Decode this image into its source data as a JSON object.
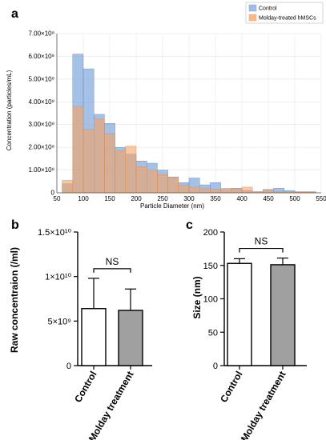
{
  "chart_data": [
    {
      "panel": "a",
      "type": "bar",
      "xlabel": "Particle Diameter (nm)",
      "ylabel": "Concentration (particles/mL)",
      "xlim": [
        50,
        550
      ],
      "ylim": [
        0,
        700000000
      ],
      "x_ticks": [
        "50",
        "100",
        "150",
        "200",
        "250",
        "300",
        "350",
        "400",
        "450",
        "500",
        "550"
      ],
      "y_ticks": [
        "0",
        "1.00×10⁸",
        "2.00×10⁸",
        "3.00×10⁸",
        "4.00×10⁸",
        "5.00×10⁸",
        "6.00×10⁸",
        "7.00×10⁸"
      ],
      "bin_width": 20,
      "bin_start": [
        60,
        80,
        100,
        120,
        140,
        160,
        180,
        200,
        220,
        240,
        260,
        280,
        300,
        320,
        340,
        360,
        380,
        400,
        420,
        440,
        460,
        480,
        500,
        520
      ],
      "legend_position": "top-right",
      "series": [
        {
          "name": "Control",
          "color": "#7fa7dc",
          "values": [
            40000000,
            610000000,
            545000000,
            345000000,
            305000000,
            200000000,
            170000000,
            140000000,
            130000000,
            100000000,
            70000000,
            45000000,
            65000000,
            35000000,
            45000000,
            15000000,
            20000000,
            10000000,
            5000000,
            15000000,
            20000000,
            10000000,
            5000000,
            5000000
          ]
        },
        {
          "name": "Molday-treated hMSCs",
          "color": "#f5a262",
          "values": [
            55000000,
            380000000,
            280000000,
            325000000,
            260000000,
            185000000,
            205000000,
            115000000,
            100000000,
            80000000,
            65000000,
            35000000,
            25000000,
            20000000,
            15000000,
            20000000,
            15000000,
            25000000,
            5000000,
            10000000,
            5000000,
            5000000,
            3000000,
            2000000
          ]
        }
      ]
    },
    {
      "panel": "b",
      "type": "bar",
      "ylabel": "Raw concentraion (/ml)",
      "categories": [
        "Control",
        "Molday treatment"
      ],
      "values": [
        6400000000,
        6200000000
      ],
      "error": [
        3400000000,
        2400000000
      ],
      "ylim": [
        0,
        15000000000
      ],
      "y_ticks": [
        "0",
        "5×10⁹",
        "1×10¹⁰",
        "1.5×10¹⁰"
      ],
      "annotation": "NS",
      "colors": [
        "#ffffff",
        "#a0a0a0"
      ]
    },
    {
      "panel": "c",
      "type": "bar",
      "ylabel": "Size (nm)",
      "categories": [
        "Control",
        "Molday treatment"
      ],
      "values": [
        153,
        151
      ],
      "error": [
        7,
        10
      ],
      "ylim": [
        0,
        200
      ],
      "y_ticks": [
        "0",
        "50",
        "100",
        "150",
        "200"
      ],
      "annotation": "NS",
      "colors": [
        "#ffffff",
        "#a0a0a0"
      ]
    }
  ]
}
